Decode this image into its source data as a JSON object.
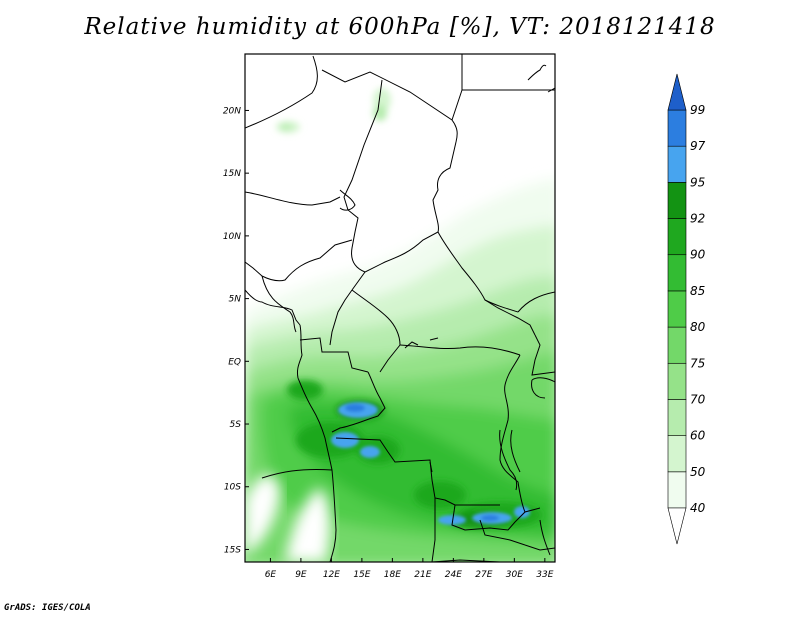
{
  "title": "Relative humidity at 600hPa [%], VT: 2018121418",
  "footer": "GrADS: IGES/COLA",
  "map": {
    "lon_range": [
      3.5,
      34
    ],
    "lat_range": [
      -16,
      24.5
    ],
    "lon_ticks": [
      {
        "v": 6,
        "label": "6E"
      },
      {
        "v": 9,
        "label": "9E"
      },
      {
        "v": 12,
        "label": "12E"
      },
      {
        "v": 15,
        "label": "15E"
      },
      {
        "v": 18,
        "label": "18E"
      },
      {
        "v": 21,
        "label": "21E"
      },
      {
        "v": 24,
        "label": "24E"
      },
      {
        "v": 27,
        "label": "27E"
      },
      {
        "v": 30,
        "label": "30E"
      },
      {
        "v": 33,
        "label": "33E"
      }
    ],
    "lat_ticks": [
      {
        "v": 20,
        "label": "20N"
      },
      {
        "v": 15,
        "label": "15N"
      },
      {
        "v": 10,
        "label": "10N"
      },
      {
        "v": 5,
        "label": "5N"
      },
      {
        "v": 0,
        "label": "EQ"
      },
      {
        "v": -5,
        "label": "5S"
      },
      {
        "v": -10,
        "label": "10S"
      },
      {
        "v": -15,
        "label": "15S"
      }
    ]
  },
  "colorbar": {
    "levels": [
      "40",
      "50",
      "60",
      "70",
      "75",
      "80",
      "85",
      "90",
      "92",
      "95",
      "97",
      "99"
    ],
    "colors": [
      "#f0fcef",
      "#d4f5cf",
      "#b6ecae",
      "#95e289",
      "#73d869",
      "#4fcc48",
      "#33bc33",
      "#1fa81f",
      "#139313",
      "#47a4ef",
      "#2c7ee0",
      "#1e5fca"
    ],
    "under_color": "#ffffff",
    "over_color": "#1e5fca"
  }
}
